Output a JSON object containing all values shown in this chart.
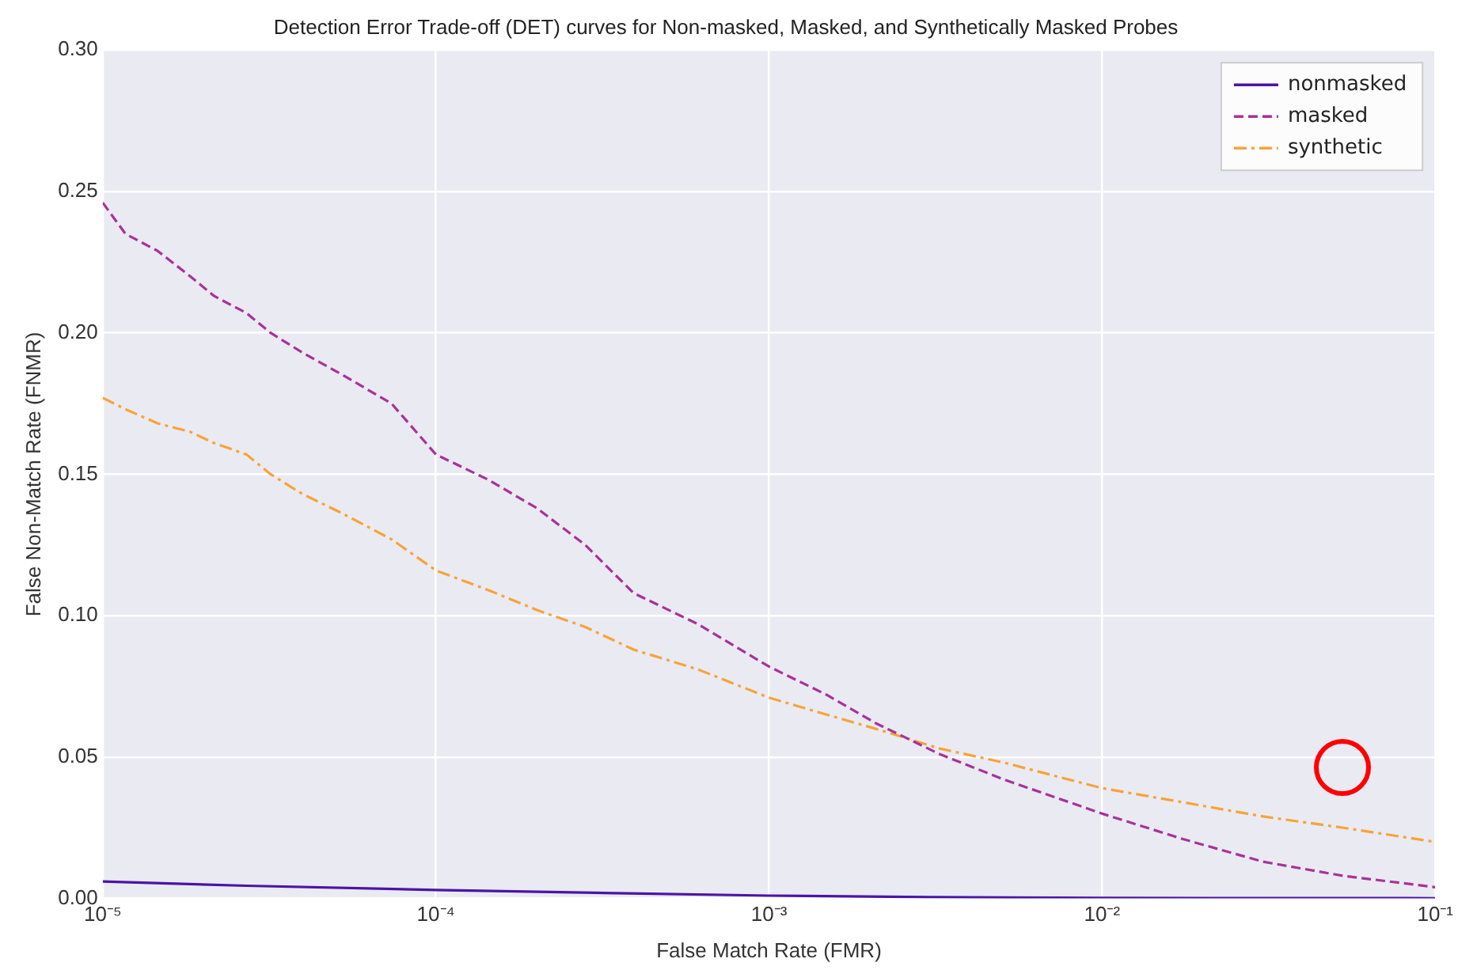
{
  "chart_data": {
    "type": "line",
    "title": "Detection Error Trade-off (DET) curves for Non-masked, Masked, and Synthetically Masked Probes",
    "xlabel": "False Match Rate (FMR)",
    "ylabel": "False Non-Match Rate (FNMR)",
    "log": "x",
    "xlim": [
      1e-05,
      0.1
    ],
    "xticks": [
      {
        "value": 1e-05,
        "label": "10⁻⁵"
      },
      {
        "value": 0.0001,
        "label": "10⁻⁴"
      },
      {
        "value": 0.001,
        "label": "10⁻³"
      },
      {
        "value": 0.01,
        "label": "10⁻²"
      },
      {
        "value": 0.1,
        "label": "10⁻¹"
      }
    ],
    "ylim": [
      0,
      0.3
    ],
    "yticks": [
      {
        "value": 0,
        "label": "0.00"
      },
      {
        "value": 0.05,
        "label": "0.05"
      },
      {
        "value": 0.1,
        "label": "0.10"
      },
      {
        "value": 0.15,
        "label": "0.15"
      },
      {
        "value": 0.2,
        "label": "0.20"
      },
      {
        "value": 0.25,
        "label": "0.25"
      },
      {
        "value": 0.3,
        "label": "0.30"
      }
    ],
    "grid": true,
    "legend": "top right",
    "marker": "none",
    "series": [
      {
        "name": "nonmasked",
        "color": "#4b14a8",
        "line_style": "solid",
        "x": [
          1e-05,
          2.7e-05,
          0.0001,
          0.0003,
          0.001,
          0.003,
          0.01,
          0.1
        ],
        "values": [
          0.006,
          0.0045,
          0.003,
          0.002,
          0.001,
          0.0005,
          0.0002,
          0.0001
        ]
      },
      {
        "name": "masked",
        "color": "#a8329a",
        "line_style": "dashed",
        "x": [
          1e-05,
          1.17e-05,
          1.46e-05,
          1.83e-05,
          2.16e-05,
          2.7e-05,
          3.19e-05,
          3.98e-05,
          5.27e-05,
          7.36e-05,
          0.0001,
          0.000144,
          0.000201,
          0.000281,
          0.000392,
          0.000612,
          0.001,
          0.00149,
          0.00209,
          0.00326,
          0.00509,
          0.01,
          0.0175,
          0.0304,
          0.053,
          0.1
        ],
        "values": [
          0.246,
          0.235,
          0.229,
          0.22,
          0.213,
          0.207,
          0.2,
          0.193,
          0.185,
          0.175,
          0.157,
          0.148,
          0.138,
          0.125,
          0.108,
          0.097,
          0.082,
          0.072,
          0.062,
          0.051,
          0.042,
          0.03,
          0.021,
          0.013,
          0.008,
          0.004
        ]
      },
      {
        "name": "synthetic",
        "color": "#f7a33a",
        "line_style": "dashdot",
        "x": [
          1e-05,
          1.17e-05,
          1.46e-05,
          1.83e-05,
          2.16e-05,
          2.7e-05,
          3.19e-05,
          3.98e-05,
          5.27e-05,
          7.36e-05,
          0.0001,
          0.000144,
          0.000201,
          0.000281,
          0.000392,
          0.000612,
          0.001,
          0.00149,
          0.00209,
          0.00326,
          0.00509,
          0.01,
          0.0175,
          0.0304,
          0.053,
          0.1
        ],
        "values": [
          0.177,
          0.173,
          0.168,
          0.165,
          0.161,
          0.157,
          0.15,
          0.143,
          0.136,
          0.127,
          0.116,
          0.109,
          0.102,
          0.096,
          0.088,
          0.081,
          0.071,
          0.065,
          0.06,
          0.053,
          0.048,
          0.039,
          0.034,
          0.029,
          0.025,
          0.02
        ]
      }
    ]
  }
}
